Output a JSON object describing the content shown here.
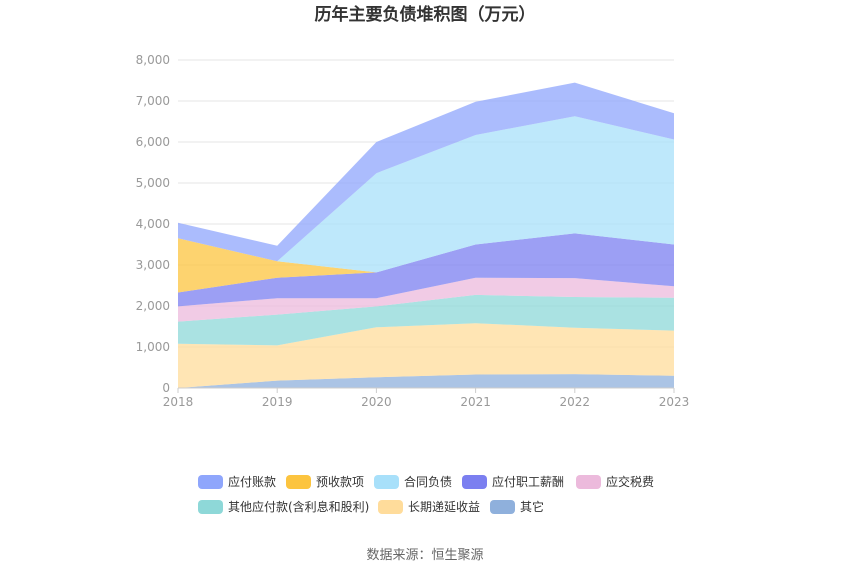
{
  "chart_data": {
    "type": "area",
    "stacked": true,
    "title": "历年主要负债堆积图（万元）",
    "source_label": "数据来源：恒生聚源",
    "x": [
      "2018",
      "2019",
      "2020",
      "2021",
      "2022",
      "2023"
    ],
    "ylim": [
      0,
      8000
    ],
    "yticks": [
      "0",
      "1,000",
      "2,000",
      "3,000",
      "4,000",
      "5,000",
      "6,000",
      "7,000",
      "8,000"
    ],
    "ytick_values": [
      0,
      1000,
      2000,
      3000,
      4000,
      5000,
      6000,
      7000,
      8000
    ],
    "grid": true,
    "legend_position": "bottom",
    "series": [
      {
        "name": "其它",
        "color": "#8fb0dc",
        "values": [
          0,
          180,
          260,
          330,
          340,
          300
        ]
      },
      {
        "name": "长期递延收益",
        "color": "#ffdc9b",
        "values": [
          1080,
          860,
          1220,
          1250,
          1130,
          1100
        ]
      },
      {
        "name": "其他应付款(含利息和股利)",
        "color": "#8ed8d8",
        "values": [
          540,
          750,
          510,
          690,
          750,
          800
        ]
      },
      {
        "name": "应交税费",
        "color": "#ecbadc",
        "values": [
          370,
          400,
          200,
          420,
          460,
          280
        ]
      },
      {
        "name": "应付职工薪酬",
        "color": "#7b7ff0",
        "values": [
          340,
          500,
          630,
          810,
          1090,
          1020
        ]
      },
      {
        "name": "预收款项",
        "color": "#fcc43f",
        "values": [
          1320,
          400,
          0,
          0,
          0,
          0
        ]
      },
      {
        "name": "合同负债",
        "color": "#a8e0fa",
        "values": [
          0,
          0,
          2420,
          2670,
          2860,
          2560
        ]
      },
      {
        "name": "应付账款",
        "color": "#8fa6fc",
        "values": [
          380,
          380,
          760,
          810,
          820,
          640
        ]
      }
    ],
    "legend_order": [
      "应付账款",
      "预收款项",
      "合同负债",
      "应付职工薪酬",
      "应交税费",
      "其他应付款(含利息和股利)",
      "长期递延收益",
      "其它"
    ]
  }
}
